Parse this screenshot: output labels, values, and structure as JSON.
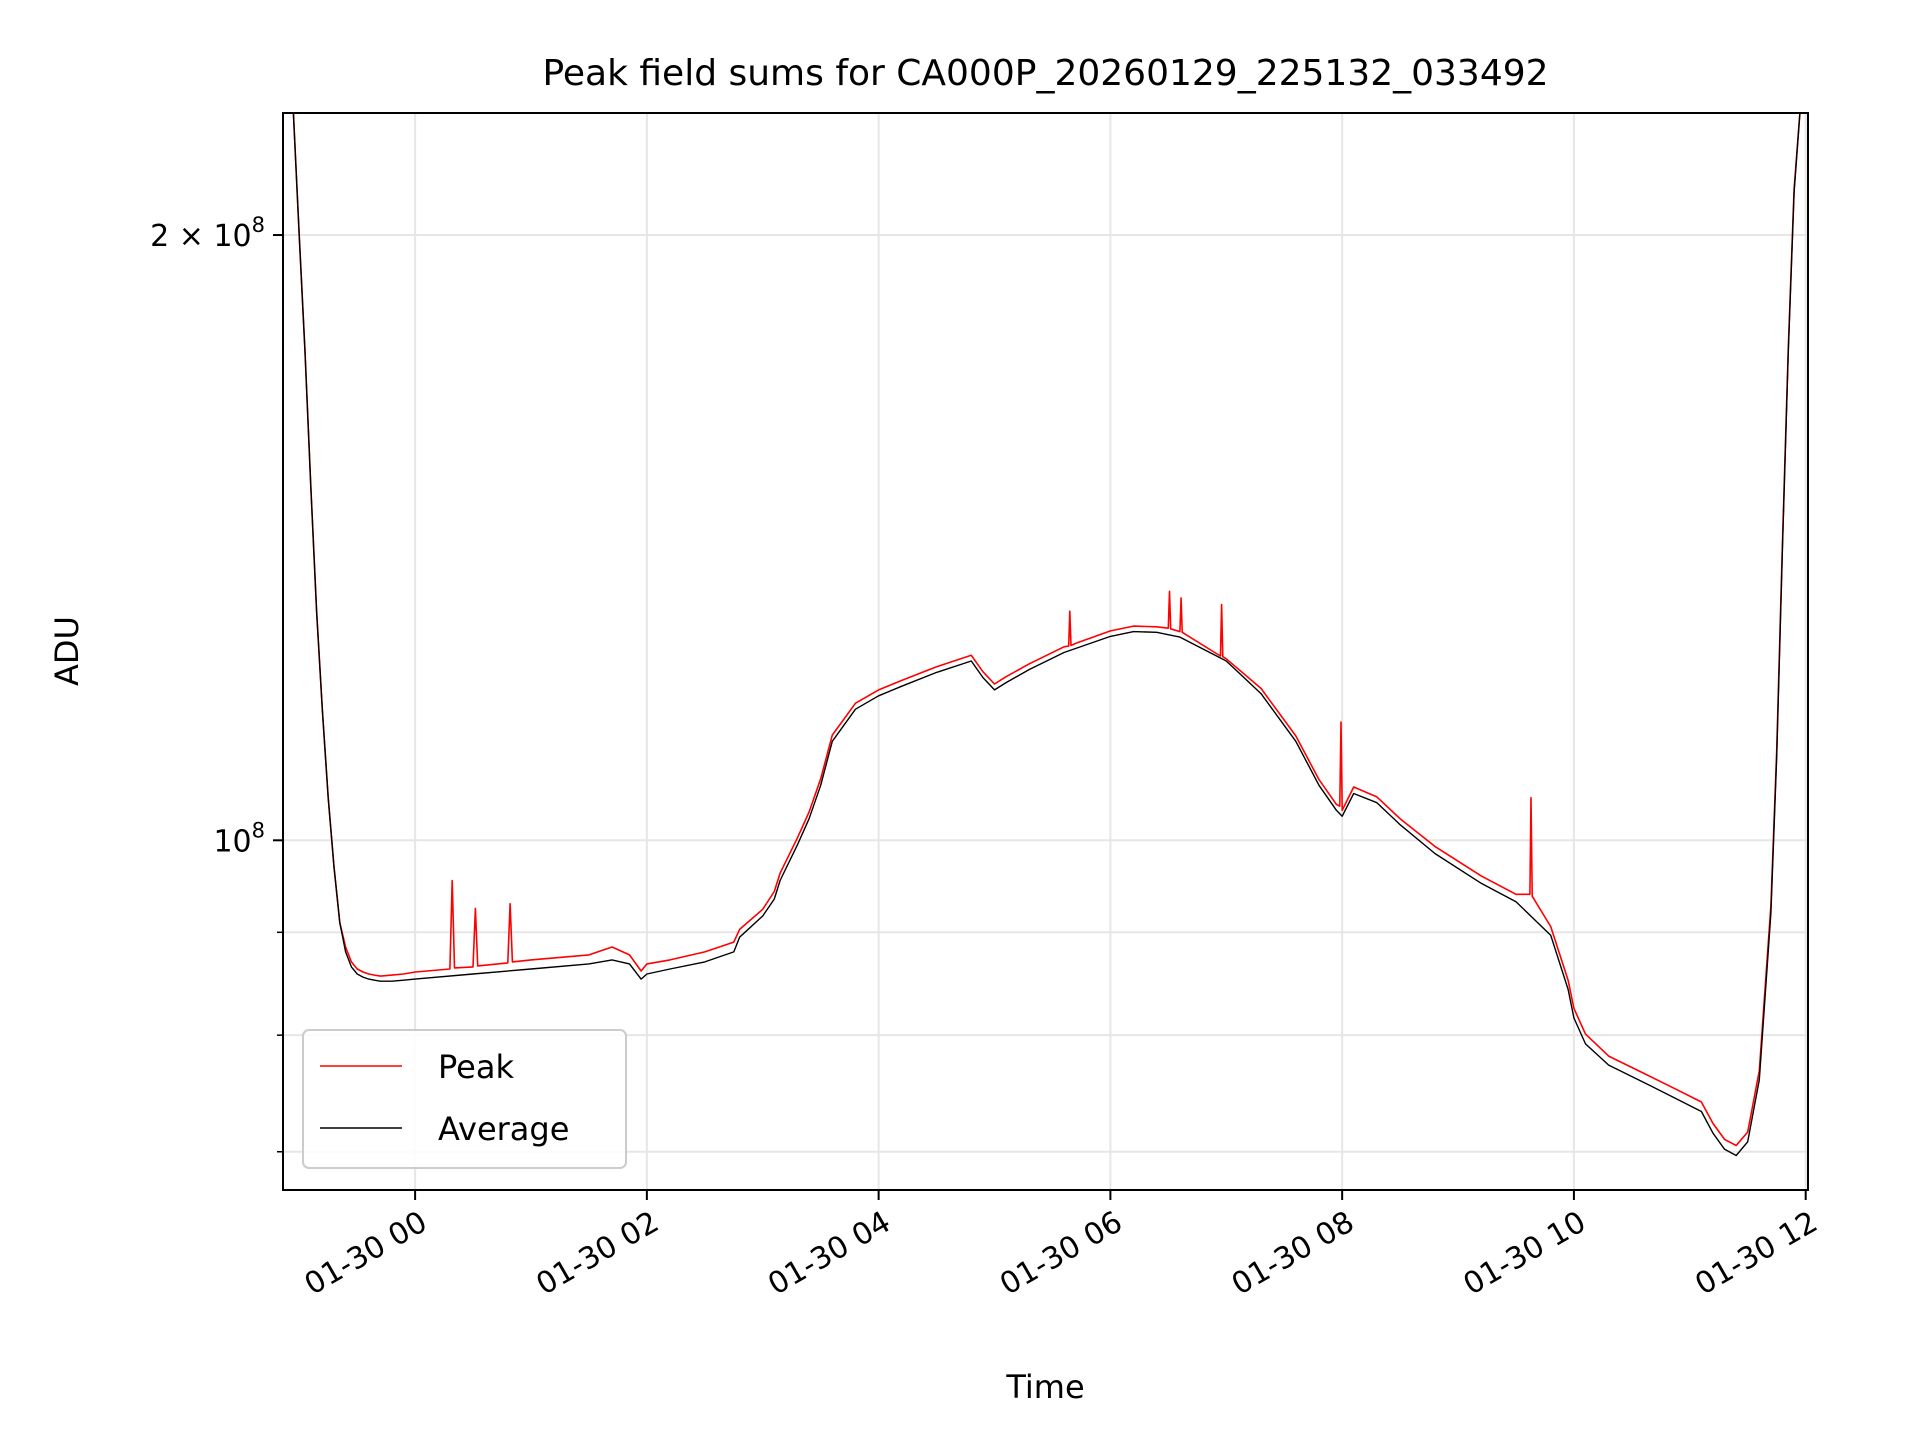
{
  "chart_data": {
    "type": "line",
    "title": "Peak field sums for CA000P_20260129_225132_033492",
    "xlabel": "Time",
    "ylabel": "ADU",
    "yscale": "log",
    "xlim_hours": [
      -1.14,
      12.02
    ],
    "ylim": [
      67000000,
      230000000
    ],
    "x_ticks": [
      {
        "hour": 0,
        "label": "01-30 00"
      },
      {
        "hour": 2,
        "label": "01-30 02"
      },
      {
        "hour": 4,
        "label": "01-30 04"
      },
      {
        "hour": 6,
        "label": "01-30 06"
      },
      {
        "hour": 8,
        "label": "01-30 08"
      },
      {
        "hour": 10,
        "label": "01-30 10"
      },
      {
        "hour": 12,
        "label": "01-30 12"
      }
    ],
    "y_major_ticks": [
      {
        "value": 100000000,
        "base": "10",
        "exp": "8",
        "mult": ""
      },
      {
        "value": 200000000,
        "base": "10",
        "exp": "8",
        "mult": "2 × "
      }
    ],
    "y_minor_ticks": [
      70000000,
      80000000,
      90000000
    ],
    "grid": true,
    "legend": {
      "position": "lower-left",
      "entries": [
        "Peak",
        "Average"
      ]
    },
    "series": [
      {
        "name": "Average",
        "color": "#000000",
        "x_hours": [
          -1.05,
          -1.0,
          -0.95,
          -0.9,
          -0.85,
          -0.8,
          -0.75,
          -0.7,
          -0.65,
          -0.6,
          -0.55,
          -0.5,
          -0.45,
          -0.4,
          -0.35,
          -0.3,
          -0.2,
          -0.1,
          0.0,
          0.5,
          1.0,
          1.5,
          1.7,
          1.85,
          1.95,
          2.0,
          2.2,
          2.5,
          2.75,
          2.8,
          3.0,
          3.1,
          3.15,
          3.3,
          3.4,
          3.5,
          3.6,
          3.8,
          4.0,
          4.2,
          4.5,
          4.8,
          4.9,
          5.0,
          5.1,
          5.3,
          5.6,
          6.0,
          6.2,
          6.4,
          6.6,
          7.0,
          7.3,
          7.6,
          7.8,
          7.95,
          8.0,
          8.1,
          8.3,
          8.5,
          8.8,
          9.2,
          9.5,
          9.8,
          9.95,
          10.0,
          10.1,
          10.3,
          10.6,
          10.9,
          11.1,
          11.2,
          11.3,
          11.4,
          11.5,
          11.6,
          11.7,
          11.75,
          11.8,
          11.85,
          11.9,
          11.95
        ],
        "values": [
          230000000,
          200000000,
          175000000,
          150000000,
          130000000,
          116000000,
          105000000,
          97000000,
          91000000,
          88000000,
          86500000,
          85800000,
          85500000,
          85300000,
          85200000,
          85100000,
          85100000,
          85200000,
          85300000,
          85800000,
          86300000,
          86800000,
          87200000,
          86800000,
          85300000,
          85800000,
          86300000,
          87000000,
          88000000,
          89500000,
          91700000,
          93500000,
          95500000,
          99500000,
          102500000,
          106500000,
          112000000,
          116200000,
          118000000,
          119300000,
          121200000,
          122800000,
          120500000,
          118800000,
          119800000,
          121600000,
          124000000,
          126300000,
          127000000,
          126900000,
          126200000,
          122800000,
          118300000,
          112000000,
          106500000,
          103500000,
          102800000,
          105500000,
          104400000,
          101800000,
          98500000,
          95200000,
          93200000,
          89700000,
          84300000,
          81600000,
          79200000,
          77300000,
          75800000,
          74300000,
          73300000,
          71500000,
          70200000,
          69700000,
          70800000,
          76000000,
          92000000,
          110000000,
          140000000,
          175000000,
          210000000,
          230000000
        ]
      },
      {
        "name": "Peak",
        "color": "#ff0000",
        "x_hours": [
          -1.05,
          -1.0,
          -0.95,
          -0.9,
          -0.85,
          -0.8,
          -0.75,
          -0.7,
          -0.65,
          -0.6,
          -0.55,
          -0.5,
          -0.45,
          -0.4,
          -0.35,
          -0.3,
          -0.2,
          -0.1,
          0.0,
          0.3,
          0.32,
          0.34,
          0.5,
          0.52,
          0.54,
          0.8,
          0.82,
          0.84,
          1.0,
          1.5,
          1.7,
          1.85,
          1.95,
          2.0,
          2.2,
          2.5,
          2.75,
          2.8,
          3.0,
          3.1,
          3.15,
          3.3,
          3.4,
          3.5,
          3.6,
          3.8,
          4.0,
          4.2,
          4.5,
          4.8,
          4.9,
          5.0,
          5.1,
          5.3,
          5.6,
          5.64,
          5.65,
          5.66,
          5.7,
          6.0,
          6.2,
          6.4,
          6.5,
          6.51,
          6.52,
          6.6,
          6.61,
          6.62,
          6.9,
          6.95,
          6.96,
          6.97,
          7.0,
          7.3,
          7.6,
          7.8,
          7.95,
          7.98,
          7.99,
          8.0,
          8.1,
          8.3,
          8.5,
          8.8,
          9.2,
          9.5,
          9.62,
          9.63,
          9.64,
          9.8,
          9.95,
          10.0,
          10.1,
          10.3,
          10.6,
          10.9,
          11.1,
          11.2,
          11.3,
          11.4,
          11.5,
          11.6,
          11.7,
          11.75,
          11.8,
          11.85,
          11.9,
          11.95
        ],
        "values": [
          230000000,
          200000000,
          175000000,
          150000000,
          130000000,
          116000000,
          105000000,
          97000000,
          91000000,
          88500000,
          87000000,
          86300000,
          86000000,
          85800000,
          85700000,
          85600000,
          85700000,
          85800000,
          86000000,
          86300000,
          95500000,
          86400000,
          86500000,
          92500000,
          86600000,
          86900000,
          93000000,
          87000000,
          87200000,
          87700000,
          88500000,
          87700000,
          86100000,
          86800000,
          87200000,
          88000000,
          89000000,
          90300000,
          92400000,
          94300000,
          96300000,
          100300000,
          103300000,
          107300000,
          112800000,
          117000000,
          118800000,
          120100000,
          122000000,
          123600000,
          121300000,
          119600000,
          120600000,
          122400000,
          124800000,
          124900000,
          130000000,
          125000000,
          125300000,
          127100000,
          127800000,
          127700000,
          127500000,
          133000000,
          127400000,
          127000000,
          132000000,
          126900000,
          124000000,
          123500000,
          131000000,
          123400000,
          123100000,
          119000000,
          112700000,
          107200000,
          104200000,
          104000000,
          114500000,
          103500000,
          106300000,
          105100000,
          102500000,
          99300000,
          96000000,
          94000000,
          94000000,
          105000000,
          93800000,
          90600000,
          85200000,
          82500000,
          80100000,
          78100000,
          76600000,
          75100000,
          74100000,
          72300000,
          71000000,
          70500000,
          71600000,
          76800000,
          92800000,
          110800000,
          140800000,
          175800000,
          210800000,
          230000000
        ]
      }
    ]
  }
}
